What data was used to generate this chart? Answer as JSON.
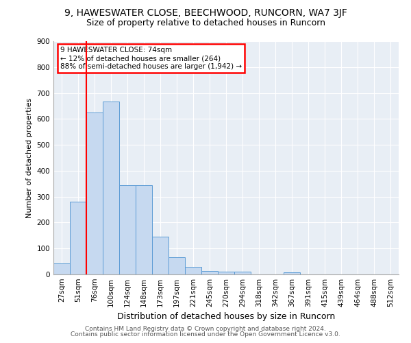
{
  "title1": "9, HAWESWATER CLOSE, BEECHWOOD, RUNCORN, WA7 3JF",
  "title2": "Size of property relative to detached houses in Runcorn",
  "xlabel": "Distribution of detached houses by size in Runcorn",
  "ylabel": "Number of detached properties",
  "footer1": "Contains HM Land Registry data © Crown copyright and database right 2024.",
  "footer2": "Contains public sector information licensed under the Open Government Licence v3.0.",
  "bar_labels": [
    "27sqm",
    "51sqm",
    "76sqm",
    "100sqm",
    "124sqm",
    "148sqm",
    "173sqm",
    "197sqm",
    "221sqm",
    "245sqm",
    "270sqm",
    "294sqm",
    "318sqm",
    "342sqm",
    "367sqm",
    "391sqm",
    "415sqm",
    "439sqm",
    "464sqm",
    "488sqm",
    "512sqm"
  ],
  "bar_values": [
    42,
    280,
    625,
    668,
    345,
    345,
    145,
    65,
    28,
    12,
    10,
    10,
    0,
    0,
    8,
    0,
    0,
    0,
    0,
    0,
    0
  ],
  "bar_color": "#c6d9f0",
  "bar_edge_color": "#5b9bd5",
  "vline_color": "red",
  "vline_x_idx": 1.5,
  "annotation_text_line1": "9 HAWESWATER CLOSE: 74sqm",
  "annotation_text_line2": "← 12% of detached houses are smaller (264)",
  "annotation_text_line3": "88% of semi-detached houses are larger (1,942) →",
  "ylim": [
    0,
    900
  ],
  "yticks": [
    0,
    100,
    200,
    300,
    400,
    500,
    600,
    700,
    800,
    900
  ],
  "background_color": "#e8eef5",
  "grid_color": "#ffffff",
  "title1_fontsize": 10,
  "title2_fontsize": 9,
  "xlabel_fontsize": 9,
  "ylabel_fontsize": 8,
  "tick_fontsize": 7.5,
  "footer_fontsize": 6.5
}
